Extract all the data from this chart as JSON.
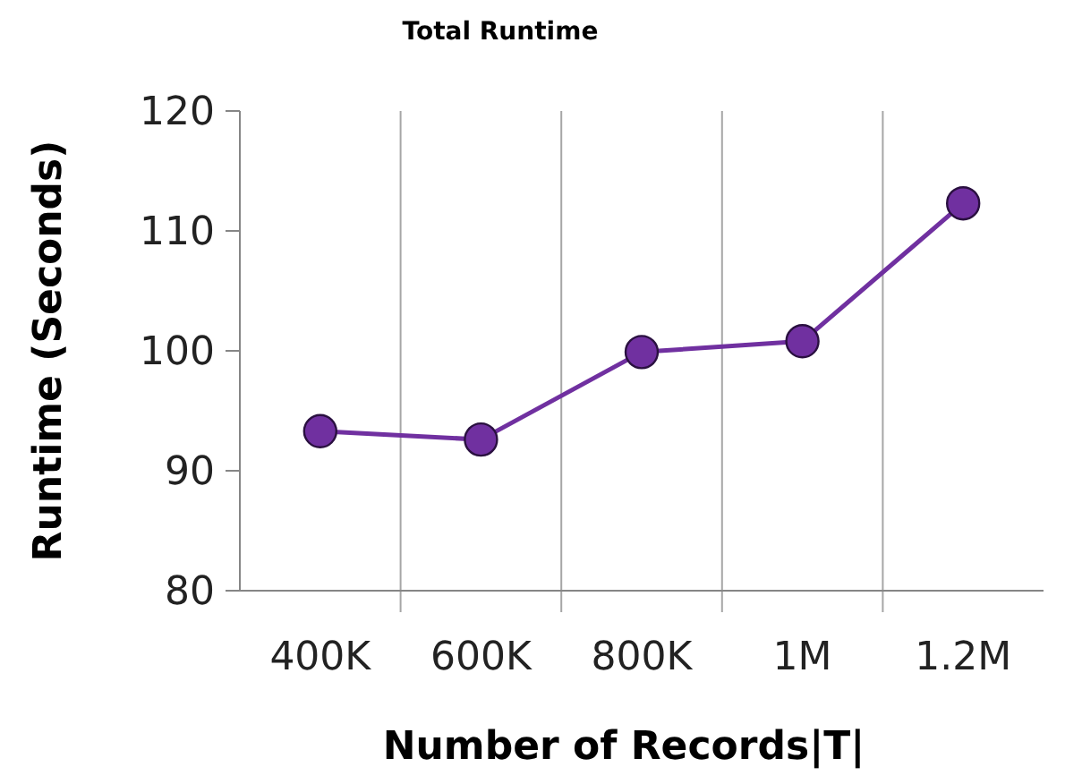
{
  "chart_data": {
    "type": "line",
    "title": "Total Runtime",
    "xlabel": "Number of Records|T|",
    "ylabel": "Runtime (Seconds)",
    "categories": [
      "400K",
      "600K",
      "800K",
      "1M",
      "1.2M"
    ],
    "series": [
      {
        "color": "#7030a0",
        "values": [
          93.3,
          92.6,
          99.9,
          100.8,
          112.3
        ]
      }
    ],
    "ylim": [
      80,
      120
    ],
    "yticks": [
      80,
      90,
      100,
      110,
      120
    ],
    "grid": "x",
    "marker": "circle",
    "line_style": "solid"
  }
}
